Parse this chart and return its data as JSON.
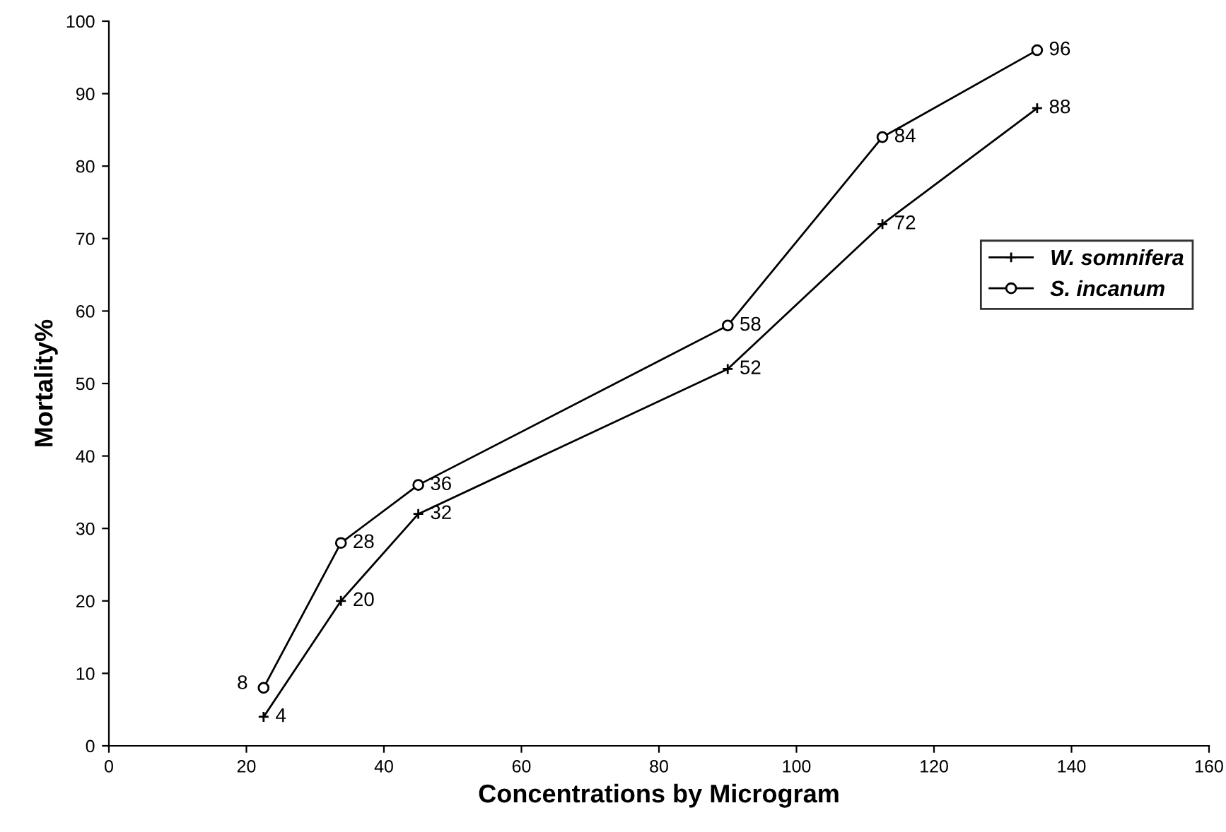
{
  "chart_data": {
    "type": "line",
    "xlabel": "Concentrations by Microgram",
    "ylabel": "Mortality%",
    "xlim": [
      0,
      160
    ],
    "xticks": [
      0,
      20,
      40,
      60,
      80,
      100,
      120,
      140,
      160
    ],
    "ylim": [
      0,
      100
    ],
    "yticks": [
      0,
      10,
      20,
      30,
      40,
      50,
      60,
      70,
      80,
      90,
      100
    ],
    "grid": false,
    "legend": "right",
    "data_labels": true,
    "line_style": "solid",
    "series": [
      {
        "name": "W. somnifera",
        "color": "#000000",
        "marker": "cross",
        "x": [
          22.5,
          33.75,
          45,
          90,
          112.5,
          135
        ],
        "values": [
          4,
          20,
          32,
          52,
          72,
          88
        ]
      },
      {
        "name": "S. incanum",
        "color": "#000000",
        "marker": "circle",
        "x": [
          22.5,
          33.75,
          45,
          90,
          112.5,
          135
        ],
        "values": [
          8,
          28,
          36,
          58,
          84,
          96
        ]
      }
    ]
  }
}
